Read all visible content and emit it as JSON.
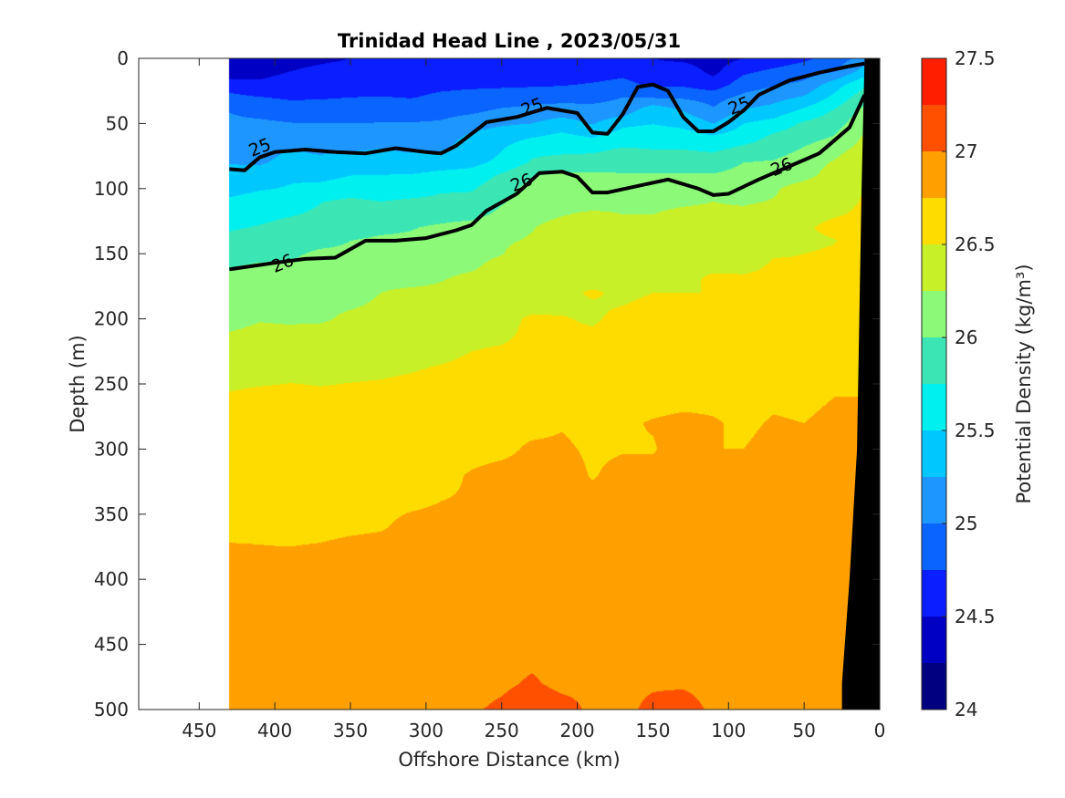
{
  "chart_data": {
    "type": "contourf",
    "title": "Trinidad Head Line , 2023/05/31",
    "xlabel": "Offshore Distance (km)",
    "ylabel": "Depth (m)",
    "colorbar_label": "Potential Density (kg/m³)",
    "xlim": [
      490,
      0
    ],
    "ylim": [
      500,
      0
    ],
    "xticks": [
      "450",
      "400",
      "350",
      "300",
      "250",
      "200",
      "150",
      "100",
      "50",
      "0"
    ],
    "yticks": [
      "0",
      "50",
      "100",
      "150",
      "200",
      "250",
      "300",
      "350",
      "400",
      "450",
      "500"
    ],
    "colorbar_ticks": [
      "24",
      "24.5",
      "25",
      "25.5",
      "26",
      "26.5",
      "27",
      "27.5"
    ],
    "levels": [
      24,
      24.25,
      24.5,
      24.75,
      25,
      25.25,
      25.5,
      25.75,
      26,
      26.25,
      26.5,
      26.75,
      27,
      27.25,
      27.5
    ],
    "colors": [
      "#000080",
      "#0000c4",
      "#0a1eff",
      "#0a64ff",
      "#1e96ff",
      "#00c8ff",
      "#00f0f0",
      "#3ce6b4",
      "#8cfa78",
      "#c8f028",
      "#ffdc00",
      "#ffa000",
      "#ff5000",
      "#ff1e00",
      "#c80000"
    ],
    "contour_labels": [
      {
        "text": "25",
        "x": 410,
        "y": 68
      },
      {
        "text": "25",
        "x": 230,
        "y": 37
      },
      {
        "text": "25",
        "x": 93,
        "y": 36
      },
      {
        "text": "26",
        "x": 395,
        "y": 157
      },
      {
        "text": "26",
        "x": 237,
        "y": 95
      },
      {
        "text": "26",
        "x": 65,
        "y": 83
      }
    ],
    "isolines": [
      {
        "level": 25,
        "x": [
          430,
          420,
          410,
          400,
          380,
          360,
          340,
          320,
          300,
          290,
          280,
          260,
          240,
          220,
          200,
          190,
          180,
          170,
          160,
          150,
          140,
          130,
          120,
          110,
          100,
          90,
          80,
          60,
          40,
          20,
          10
        ],
        "y": [
          85,
          86,
          76,
          72,
          70,
          72,
          73,
          69,
          72,
          73,
          67,
          49,
          45,
          38,
          42,
          57,
          58,
          43,
          22,
          20,
          25,
          45,
          56,
          56,
          49,
          40,
          28,
          17,
          11,
          6,
          4
        ]
      },
      {
        "level": 26,
        "x": [
          430,
          400,
          380,
          360,
          340,
          320,
          300,
          280,
          270,
          260,
          240,
          225,
          210,
          200,
          190,
          180,
          160,
          140,
          120,
          110,
          100,
          80,
          60,
          40,
          20,
          10
        ],
        "y": [
          162,
          157,
          154,
          153,
          140,
          140,
          138,
          132,
          128,
          117,
          104,
          88,
          87,
          91,
          103,
          103,
          98,
          93,
          100,
          105,
          104,
          93,
          83,
          73,
          53,
          28
        ]
      }
    ],
    "data": {
      "x": [
        430,
        410,
        390,
        370,
        350,
        330,
        310,
        290,
        270,
        250,
        230,
        210,
        190,
        170,
        150,
        130,
        110,
        90,
        70,
        50,
        30,
        10
      ],
      "depth": [
        0,
        10,
        20,
        30,
        40,
        50,
        60,
        70,
        80,
        90,
        100,
        110,
        120,
        130,
        140,
        150,
        160,
        170,
        180,
        190,
        200,
        220,
        240,
        260,
        280,
        300,
        320,
        340,
        360,
        380,
        400,
        420,
        440,
        460,
        480,
        500
      ],
      "z": [
        [
          24.3,
          24.4,
          24.4,
          24.45,
          24.5,
          24.55,
          24.55,
          24.6,
          24.6,
          24.62,
          24.6,
          24.55,
          24.5,
          24.55,
          24.5,
          24.45,
          24.4,
          24.5,
          24.6,
          24.7,
          24.85,
          25.1
        ],
        [
          24.33,
          24.45,
          24.5,
          24.56,
          24.58,
          24.6,
          24.6,
          24.63,
          24.62,
          24.61,
          24.6,
          24.64,
          24.62,
          24.68,
          24.57,
          24.62,
          24.44,
          24.7,
          24.8,
          24.89,
          24.98,
          25.36
        ],
        [
          24.62,
          24.53,
          24.57,
          24.6,
          24.65,
          24.63,
          24.68,
          24.7,
          24.71,
          24.72,
          24.71,
          24.73,
          24.77,
          24.82,
          24.7,
          24.7,
          24.6,
          24.88,
          24.97,
          25.05,
          25.38,
          25.7
        ],
        [
          24.82,
          24.76,
          24.72,
          24.73,
          24.75,
          24.76,
          24.74,
          24.79,
          24.82,
          24.83,
          24.91,
          24.91,
          24.93,
          25.0,
          24.98,
          24.97,
          24.91,
          25.06,
          25.16,
          25.28,
          25.56,
          25.9
        ],
        [
          24.99,
          24.91,
          24.86,
          24.86,
          24.89,
          24.88,
          24.89,
          24.91,
          24.94,
          25.04,
          25.07,
          25.11,
          25.07,
          25.09,
          25.44,
          25.24,
          25.03,
          25.27,
          25.35,
          25.55,
          25.77,
          26.07
        ],
        [
          25.05,
          25.05,
          25.01,
          25.0,
          25.0,
          25.01,
          25.01,
          25.03,
          25.15,
          25.21,
          25.25,
          25.37,
          25.23,
          25.45,
          25.49,
          25.43,
          25.25,
          25.5,
          25.6,
          25.79,
          25.89,
          26.18
        ],
        [
          25.07,
          25.09,
          25.1,
          25.11,
          25.11,
          25.1,
          25.14,
          25.16,
          25.29,
          25.4,
          25.48,
          25.56,
          25.48,
          25.6,
          25.65,
          25.61,
          25.52,
          25.62,
          25.8,
          25.89,
          26.01,
          26.28
        ],
        [
          25.18,
          25.15,
          25.26,
          25.2,
          25.23,
          25.26,
          25.22,
          25.23,
          25.34,
          25.49,
          25.68,
          25.67,
          25.7,
          25.78,
          25.75,
          25.75,
          25.71,
          25.82,
          25.87,
          26.03,
          26.18,
          26.33
        ],
        [
          25.24,
          25.22,
          25.33,
          25.32,
          25.37,
          25.33,
          25.34,
          25.39,
          25.43,
          25.56,
          25.78,
          25.88,
          25.87,
          25.92,
          25.84,
          25.92,
          25.89,
          26.0,
          26.03,
          26.16,
          26.27,
          26.4
        ],
        [
          25.33,
          25.35,
          25.46,
          25.42,
          25.5,
          25.51,
          25.52,
          25.57,
          25.6,
          25.79,
          25.99,
          26.05,
          26.04,
          26.02,
          26.03,
          26.02,
          26.02,
          26.07,
          26.16,
          26.2,
          26.32,
          26.41
        ],
        [
          25.42,
          25.48,
          25.52,
          25.58,
          25.63,
          25.61,
          25.63,
          25.72,
          25.72,
          25.92,
          26.07,
          26.1,
          26.14,
          26.09,
          26.09,
          26.15,
          26.12,
          26.14,
          26.23,
          26.32,
          26.4,
          26.5
        ],
        [
          25.54,
          25.6,
          25.62,
          25.74,
          25.8,
          25.75,
          25.79,
          25.8,
          25.84,
          25.98,
          26.09,
          26.2,
          26.18,
          26.22,
          26.22,
          26.23,
          26.25,
          26.23,
          26.26,
          26.31,
          26.41,
          26.52
        ],
        [
          25.63,
          25.67,
          25.73,
          25.8,
          25.87,
          25.86,
          25.93,
          25.93,
          25.93,
          26.05,
          26.19,
          26.24,
          26.28,
          26.25,
          26.25,
          26.28,
          26.28,
          26.29,
          26.33,
          26.42,
          26.48,
          26.54
        ],
        [
          25.72,
          25.77,
          25.85,
          25.89,
          25.92,
          25.96,
          25.99,
          26.03,
          26.09,
          26.16,
          26.24,
          26.32,
          26.3,
          26.34,
          26.33,
          26.31,
          26.38,
          26.4,
          26.45,
          26.47,
          26.56,
          26.59
        ],
        [
          25.82,
          25.9,
          25.93,
          25.95,
          26.0,
          26.03,
          26.03,
          26.06,
          26.15,
          26.22,
          26.27,
          26.35,
          26.36,
          26.4,
          26.39,
          26.4,
          26.38,
          26.4,
          26.46,
          26.45,
          26.49,
          26.59
        ],
        [
          25.9,
          25.92,
          25.97,
          26.03,
          26.03,
          26.09,
          26.11,
          26.14,
          26.19,
          26.24,
          26.37,
          26.36,
          26.4,
          26.38,
          26.42,
          26.44,
          26.47,
          26.42,
          26.49,
          26.5,
          26.53,
          26.59
        ],
        [
          25.98,
          26.04,
          26.03,
          26.05,
          26.12,
          26.16,
          26.18,
          26.2,
          26.22,
          26.32,
          26.36,
          26.4,
          26.42,
          26.44,
          26.45,
          26.48,
          26.48,
          26.46,
          26.52,
          26.51,
          26.61,
          26.63
        ],
        [
          26.04,
          26.08,
          26.12,
          26.15,
          26.15,
          26.19,
          26.18,
          26.24,
          26.3,
          26.33,
          26.4,
          26.44,
          26.44,
          26.48,
          26.49,
          26.47,
          26.52,
          26.53,
          26.54,
          26.58,
          26.57,
          26.61
        ],
        [
          26.08,
          26.12,
          26.14,
          26.15,
          26.18,
          26.25,
          26.3,
          26.3,
          26.32,
          26.4,
          26.4,
          26.46,
          26.52,
          26.47,
          26.5,
          26.5,
          26.5,
          26.54,
          26.54,
          26.56,
          26.59,
          26.66
        ],
        [
          26.18,
          26.16,
          26.18,
          26.21,
          26.23,
          26.28,
          26.26,
          26.35,
          26.38,
          26.42,
          26.46,
          26.47,
          26.48,
          26.5,
          26.53,
          26.51,
          26.55,
          26.53,
          26.6,
          26.59,
          26.64,
          26.61
        ],
        [
          26.2,
          26.24,
          26.23,
          26.22,
          26.29,
          26.31,
          26.37,
          26.39,
          26.41,
          26.46,
          26.52,
          26.51,
          26.48,
          26.54,
          26.56,
          26.57,
          26.58,
          26.59,
          26.58,
          26.64,
          26.6,
          26.64
        ],
        [
          26.3,
          26.32,
          26.32,
          26.39,
          26.37,
          26.37,
          26.39,
          26.41,
          26.48,
          26.5,
          26.52,
          26.54,
          26.55,
          26.57,
          26.58,
          26.62,
          26.63,
          26.63,
          26.66,
          26.68,
          26.69,
          26.67
        ],
        [
          26.38,
          26.38,
          26.42,
          26.44,
          26.45,
          26.46,
          26.49,
          26.53,
          26.56,
          26.59,
          26.59,
          26.6,
          26.66,
          26.63,
          26.66,
          26.67,
          26.68,
          26.66,
          26.67,
          26.7,
          26.68,
          26.7
        ],
        [
          26.53,
          26.58,
          26.59,
          26.54,
          26.56,
          26.58,
          26.61,
          26.6,
          26.63,
          26.62,
          26.66,
          26.64,
          26.68,
          26.67,
          26.7,
          26.71,
          26.72,
          26.71,
          26.73,
          26.72,
          26.75,
          26.75
        ],
        [
          26.58,
          26.62,
          26.61,
          26.6,
          26.63,
          26.65,
          26.64,
          26.68,
          26.67,
          26.72,
          26.71,
          26.74,
          26.71,
          26.73,
          26.76,
          26.78,
          26.76,
          26.73,
          26.76,
          26.75,
          26.78,
          26.77
        ],
        [
          26.64,
          26.68,
          26.66,
          26.66,
          26.65,
          26.66,
          26.7,
          26.69,
          26.71,
          26.72,
          26.77,
          26.77,
          26.73,
          26.74,
          26.74,
          26.81,
          26.75,
          26.75,
          26.78,
          26.78,
          26.8,
          26.8
        ],
        [
          26.7,
          26.7,
          26.7,
          26.69,
          26.69,
          26.7,
          26.71,
          26.72,
          26.76,
          26.79,
          26.79,
          26.81,
          26.74,
          26.79,
          26.79,
          26.8,
          26.78,
          26.78,
          26.79,
          26.78,
          26.8,
          26.8
        ],
        [
          26.71,
          26.71,
          26.72,
          26.7,
          26.72,
          26.72,
          26.73,
          26.75,
          26.76,
          26.79,
          26.8,
          26.79,
          26.79,
          26.8,
          26.8,
          26.81,
          26.8,
          26.8,
          26.82,
          26.81,
          26.82,
          26.82
        ],
        [
          26.72,
          26.73,
          26.72,
          26.72,
          26.73,
          26.74,
          26.78,
          26.78,
          26.79,
          26.8,
          26.83,
          26.83,
          26.82,
          26.81,
          26.82,
          26.84,
          26.8,
          26.82,
          26.81,
          26.82,
          26.82,
          26.82
        ],
        [
          26.77,
          26.76,
          26.76,
          26.77,
          26.79,
          26.8,
          26.8,
          26.82,
          26.8,
          26.83,
          26.84,
          26.84,
          26.82,
          26.84,
          26.83,
          26.83,
          26.84,
          26.86,
          26.86,
          26.84,
          26.84,
          26.84
        ],
        [
          26.81,
          26.8,
          26.81,
          26.8,
          26.81,
          26.83,
          26.82,
          26.83,
          26.85,
          26.86,
          26.86,
          26.87,
          26.86,
          26.87,
          26.88,
          26.89,
          26.88,
          26.88,
          26.87,
          26.86,
          26.88,
          26.88
        ],
        [
          26.84,
          26.84,
          26.83,
          26.85,
          26.84,
          26.85,
          26.85,
          26.88,
          26.86,
          26.88,
          26.89,
          26.89,
          26.89,
          26.88,
          26.89,
          26.9,
          26.9,
          26.89,
          26.89,
          26.89,
          26.92,
          26.9
        ],
        [
          26.86,
          26.87,
          26.87,
          26.88,
          26.89,
          26.88,
          26.89,
          26.89,
          26.91,
          26.91,
          26.92,
          26.93,
          26.91,
          26.92,
          26.9,
          26.92,
          26.91,
          26.91,
          26.92,
          26.91,
          26.92,
          26.92
        ],
        [
          26.91,
          26.9,
          26.91,
          26.91,
          26.9,
          26.92,
          26.92,
          26.93,
          26.92,
          26.95,
          26.97,
          26.95,
          26.94,
          26.92,
          26.95,
          26.93,
          26.93,
          26.92,
          26.93,
          26.93,
          26.94,
          26.93
        ],
        [
          26.93,
          26.93,
          26.94,
          26.93,
          26.94,
          26.94,
          26.93,
          26.94,
          26.95,
          26.97,
          27.02,
          26.96,
          26.97,
          26.96,
          26.98,
          26.98,
          26.95,
          26.96,
          26.95,
          26.95,
          26.95,
          26.95
        ],
        [
          26.95,
          26.96,
          26.95,
          26.96,
          26.97,
          26.96,
          26.97,
          26.97,
          26.98,
          27.03,
          27.11,
          27.06,
          26.97,
          26.96,
          27.04,
          27.07,
          26.97,
          26.97,
          26.97,
          26.98,
          26.97,
          26.97
        ]
      ]
    },
    "bathymetry_mask": {
      "x": [
        0,
        10,
        12,
        15,
        20,
        25,
        25,
        0
      ],
      "y": [
        0,
        0,
        100,
        300,
        400,
        480,
        500,
        500
      ]
    },
    "grid": false
  }
}
